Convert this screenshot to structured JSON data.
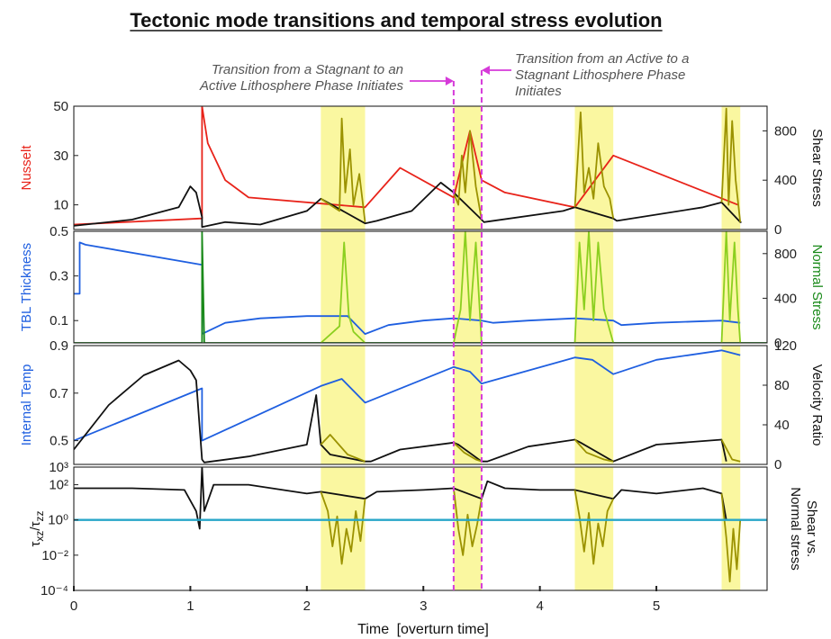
{
  "chart_data": {
    "type": "line",
    "title": "Tectonic mode transitions and temporal stress evolution",
    "xlabel_main": "Time",
    "xlabel_unit": "[overturn time]",
    "xlim": [
      0,
      5.95
    ],
    "xticks": [
      "0",
      "1",
      "2",
      "3",
      "4",
      "5"
    ],
    "active_phases": [
      [
        2.12,
        2.5
      ],
      [
        3.26,
        3.5
      ],
      [
        4.3,
        4.63
      ],
      [
        5.56,
        5.72
      ]
    ],
    "transitions": [
      {
        "x": 3.26,
        "label": "Transition from a Stagnant to an Active Lithosphere Phase Initiates",
        "lines": [
          "Transition from a Stagnant to an",
          "Active Lithosphere Phase Initiates"
        ]
      },
      {
        "x": 3.5,
        "label": "Transition from an Active to a Stagnant Lithosphere Phase Initiates",
        "lines": [
          "Transition from an Active to a",
          "Stagnant Lithosphere Phase",
          "Initiates"
        ]
      }
    ],
    "colors": {
      "red": "#e8231a",
      "blue": "#1f5fe0",
      "green": "#1a8a1a",
      "black": "#111111",
      "olive": "#9b9200",
      "cyan": "#27a6c8",
      "magenta": "#d63ad9",
      "highlight": "#faf7a0",
      "orange": "#e88a1a",
      "gray": "#8a8a9a",
      "lime": "#8ccf1f"
    },
    "panels": [
      {
        "name": "nusselt-shear",
        "left_label": "Nusselt",
        "left_color": "#e8231a",
        "left_ticks": [
          "50",
          "30",
          "10"
        ],
        "left_lim": [
          0,
          50
        ],
        "right_label": "Shear Stress",
        "right_color": "#111111",
        "right_ticks": [
          "800",
          "400",
          "0"
        ],
        "right_lim": [
          0,
          1000
        ],
        "series": [
          {
            "axis": "left",
            "color": "#e8231a",
            "x": [
              0,
              1.1,
              1.1,
              1.15,
              1.3,
              1.5,
              2.5,
              2.8,
              3.26,
              3.4,
              3.5,
              3.7,
              4.3,
              4.63,
              5.7
            ],
            "y": [
              2,
              4.5,
              50,
              35,
              20,
              13,
              9,
              25,
              13,
              40,
              20,
              15,
              9,
              30,
              10
            ]
          },
          {
            "axis": "right",
            "color": "#111111",
            "x": [
              0,
              0.5,
              0.9,
              1.0,
              1.05,
              1.1,
              1.1,
              1.3,
              1.6,
              2.0,
              2.12,
              2.5,
              2.6,
              2.9,
              3.15,
              3.26,
              3.5,
              3.52,
              4.2,
              4.3,
              4.63,
              4.66,
              5.4,
              5.56,
              5.72,
              5.73
            ],
            "y": [
              30,
              80,
              180,
              350,
              300,
              100,
              20,
              60,
              40,
              150,
              250,
              50,
              70,
              150,
              380,
              300,
              80,
              60,
              150,
              180,
              90,
              70,
              180,
              220,
              60,
              60
            ]
          },
          {
            "axis": "right",
            "color": "#9b9200",
            "x": [
              2.12,
              2.2,
              2.28,
              2.3,
              2.33,
              2.37,
              2.4,
              2.45,
              2.5
            ],
            "y": [
              250,
              200,
              150,
              900,
              300,
              650,
              200,
              450,
              60
            ]
          },
          {
            "axis": "right",
            "color": "#9b9200",
            "x": [
              3.26,
              3.3,
              3.33,
              3.36,
              3.4,
              3.45,
              3.5
            ],
            "y": [
              300,
              200,
              600,
              300,
              800,
              350,
              80
            ]
          },
          {
            "axis": "right",
            "color": "#9b9200",
            "x": [
              4.3,
              4.35,
              4.38,
              4.42,
              4.46,
              4.5,
              4.55,
              4.6,
              4.63
            ],
            "y": [
              180,
              950,
              300,
              500,
              250,
              700,
              350,
              250,
              90
            ]
          },
          {
            "axis": "right",
            "color": "#9b9200",
            "x": [
              5.56,
              5.6,
              5.62,
              5.65,
              5.68,
              5.72
            ],
            "y": [
              220,
              980,
              200,
              880,
              400,
              60
            ]
          }
        ]
      },
      {
        "name": "tbl-normal",
        "left_label": "TBL Thickness",
        "left_color": "#1f5fe0",
        "left_ticks": [
          "0.5",
          "0.3",
          "0.1"
        ],
        "left_lim": [
          0,
          0.5
        ],
        "right_label": "Normal Stress",
        "right_color": "#1a8a1a",
        "right_ticks": [
          "800",
          "400",
          "0"
        ],
        "right_lim": [
          0,
          1000
        ],
        "series": [
          {
            "axis": "left",
            "color": "#1f5fe0",
            "x": [
              0,
              0.05,
              0.05,
              0.1,
              1.1,
              1.1,
              1.3,
              1.6,
              2.0,
              2.12,
              2.35,
              2.5,
              2.7,
              3.0,
              3.26,
              3.5,
              3.6,
              3.9,
              4.3,
              4.63,
              4.7,
              5.0,
              5.56,
              5.72
            ],
            "y": [
              0.22,
              0.22,
              0.45,
              0.44,
              0.35,
              0.04,
              0.09,
              0.11,
              0.12,
              0.12,
              0.12,
              0.04,
              0.08,
              0.1,
              0.11,
              0.1,
              0.09,
              0.1,
              0.11,
              0.1,
              0.08,
              0.09,
              0.1,
              0.09
            ]
          },
          {
            "axis": "right",
            "color": "#1a8a1a",
            "x": [
              0,
              1.1,
              1.1,
              1.12,
              1.5,
              5.95
            ],
            "y": [
              0,
              0,
              1000,
              0,
              0,
              0
            ]
          },
          {
            "axis": "right",
            "color": "#8ccf1f",
            "x": [
              2.12,
              2.28,
              2.32,
              2.36,
              2.4,
              2.5
            ],
            "y": [
              0,
              150,
              900,
              250,
              100,
              0
            ]
          },
          {
            "axis": "right",
            "color": "#8ccf1f",
            "x": [
              3.26,
              3.32,
              3.36,
              3.4,
              3.45,
              3.5
            ],
            "y": [
              0,
              300,
              1000,
              200,
              900,
              0
            ]
          },
          {
            "axis": "right",
            "color": "#8ccf1f",
            "x": [
              4.3,
              4.34,
              4.38,
              4.42,
              4.46,
              4.5,
              4.55,
              4.63
            ],
            "y": [
              0,
              900,
              300,
              1000,
              200,
              900,
              300,
              0
            ]
          },
          {
            "axis": "right",
            "color": "#8ccf1f",
            "x": [
              5.56,
              5.6,
              5.63,
              5.67,
              5.7,
              5.72
            ],
            "y": [
              0,
              1000,
              200,
              900,
              300,
              0
            ]
          }
        ]
      },
      {
        "name": "temp-velocity",
        "left_label": "Internal Temp",
        "left_color": "#1f5fe0",
        "left_ticks": [
          "0.9",
          "0.7",
          "0.5"
        ],
        "left_lim": [
          0.4,
          0.9
        ],
        "right_label": "Velocity Ratio",
        "right_color": "#111111",
        "right_ticks": [
          "120",
          "80",
          "40",
          "0"
        ],
        "right_lim": [
          0,
          120
        ],
        "series": [
          {
            "axis": "left",
            "color": "#1f5fe0",
            "x": [
              0,
              1.1,
              1.1,
              2.12,
              2.3,
              2.5,
              3.26,
              3.4,
              3.5,
              4.3,
              4.45,
              4.63,
              5.0,
              5.56,
              5.72
            ],
            "y": [
              0.5,
              0.72,
              0.5,
              0.73,
              0.76,
              0.66,
              0.81,
              0.79,
              0.74,
              0.85,
              0.84,
              0.78,
              0.84,
              0.88,
              0.86
            ]
          },
          {
            "axis": "right",
            "color": "#111111",
            "x": [
              0,
              0.3,
              0.6,
              0.9,
              1.0,
              1.05,
              1.1,
              1.12,
              1.5,
              2.0,
              2.08,
              2.12,
              2.2,
              2.5,
              2.55,
              2.8,
              3.26,
              3.3,
              3.5,
              3.55,
              3.9,
              4.3,
              4.35,
              4.63,
              5.0,
              5.56,
              5.6
            ],
            "y": [
              15,
              60,
              90,
              105,
              95,
              85,
              5,
              2,
              8,
              20,
              70,
              20,
              10,
              3,
              3,
              15,
              22,
              20,
              3,
              3,
              18,
              25,
              22,
              3,
              20,
              25,
              3
            ]
          },
          {
            "axis": "right",
            "color": "#9b9200",
            "x": [
              2.12,
              2.2,
              2.35,
              2.5
            ],
            "y": [
              20,
              30,
              10,
              3
            ]
          },
          {
            "axis": "right",
            "color": "#9b9200",
            "x": [
              3.26,
              3.35,
              3.45,
              3.5
            ],
            "y": [
              22,
              12,
              5,
              3
            ]
          },
          {
            "axis": "right",
            "color": "#9b9200",
            "x": [
              4.3,
              4.4,
              4.55,
              4.63
            ],
            "y": [
              25,
              12,
              5,
              3
            ]
          },
          {
            "axis": "right",
            "color": "#9b9200",
            "x": [
              5.56,
              5.65,
              5.72
            ],
            "y": [
              25,
              5,
              3
            ]
          }
        ]
      },
      {
        "name": "stress-ratio",
        "left_label_main": "τ",
        "left_label_sub": "xz",
        "left_label_slash": "/τ",
        "left_label_sub2": "zz",
        "left_label": "τxz/τzz",
        "left_color": "#111111",
        "log": true,
        "left_ticks": [
          "10³",
          "10²",
          "10⁰",
          "10⁻²",
          "10⁻⁴"
        ],
        "left_tick_values": [
          3,
          2,
          0,
          -2,
          -4
        ],
        "left_lim": [
          -4,
          3
        ],
        "right_label": "Shear vs.",
        "right_label2": "Normal stress",
        "right_color": "#111111",
        "series": [
          {
            "axis": "left",
            "color": "#111111",
            "x": [
              0,
              0.5,
              0.95,
              1.05,
              1.08,
              1.1,
              1.12,
              1.2,
              1.5,
              2.0,
              2.12,
              2.5,
              2.6,
              3.0,
              3.26,
              3.5,
              3.55,
              3.7,
              4.0,
              4.3,
              4.63,
              4.7,
              5.0,
              5.4,
              5.56,
              5.6
            ],
            "y": [
              1.8,
              1.8,
              1.7,
              0.5,
              -0.5,
              3.0,
              0.5,
              2.0,
              2.0,
              1.5,
              1.6,
              1.2,
              1.6,
              1.7,
              1.8,
              1.2,
              2.2,
              1.8,
              1.7,
              1.7,
              1.2,
              1.7,
              1.5,
              1.8,
              1.5,
              0
            ]
          },
          {
            "axis": "left",
            "color": "#9b9200",
            "x": [
              2.12,
              2.18,
              2.22,
              2.26,
              2.3,
              2.34,
              2.38,
              2.42,
              2.46,
              2.5
            ],
            "y": [
              1.6,
              0.5,
              -1.5,
              0.2,
              -2.5,
              -0.5,
              -1.8,
              0.5,
              -1.2,
              1.2
            ]
          },
          {
            "axis": "left",
            "color": "#9b9200",
            "x": [
              3.26,
              3.3,
              3.34,
              3.38,
              3.42,
              3.46,
              3.5
            ],
            "y": [
              1.8,
              -0.5,
              -2.0,
              0.3,
              -1.5,
              -0.3,
              1.2
            ]
          },
          {
            "axis": "left",
            "color": "#9b9200",
            "x": [
              4.3,
              4.34,
              4.38,
              4.42,
              4.46,
              4.5,
              4.54,
              4.58,
              4.63
            ],
            "y": [
              1.7,
              0.2,
              -1.8,
              0.4,
              -2.5,
              -0.2,
              -1.5,
              0.5,
              1.2
            ]
          },
          {
            "axis": "left",
            "color": "#9b9200",
            "x": [
              5.56,
              5.6,
              5.63,
              5.66,
              5.69,
              5.72
            ],
            "y": [
              1.5,
              -1.0,
              -3.5,
              -0.5,
              -2.8,
              0
            ]
          },
          {
            "axis": "left",
            "color": "#27a6c8",
            "x": [
              0,
              5.95
            ],
            "y": [
              0,
              0
            ]
          }
        ]
      }
    ]
  }
}
